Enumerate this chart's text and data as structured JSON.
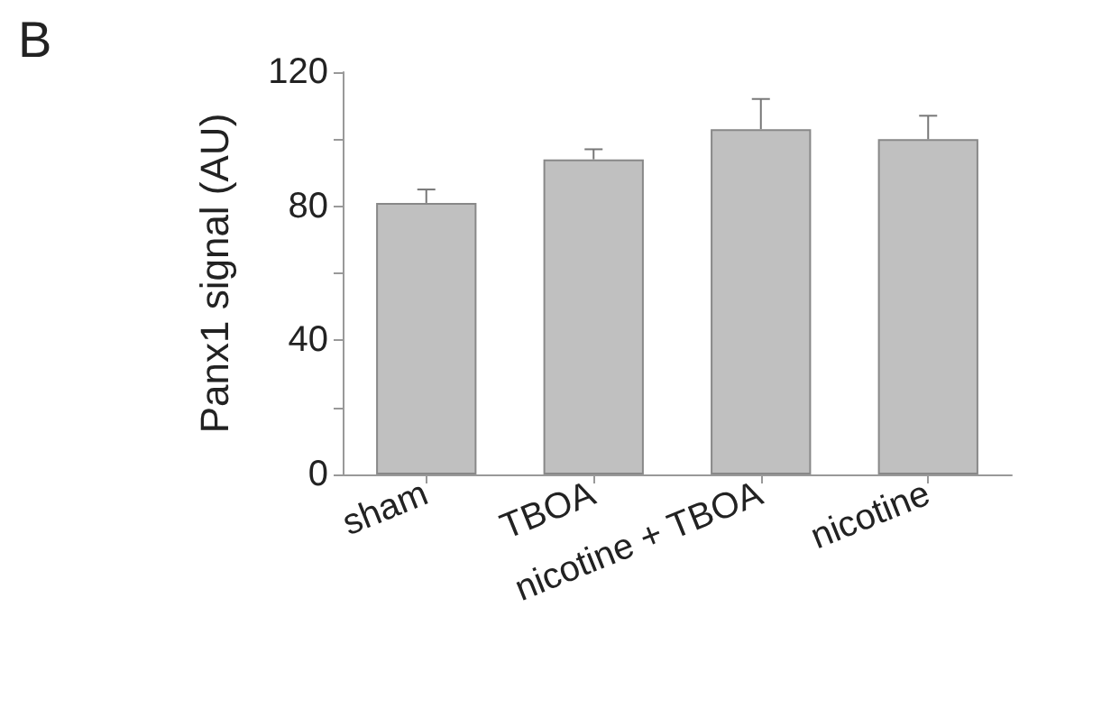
{
  "chart_data": {
    "type": "bar",
    "ylabel": "Panx1 signal (AU)",
    "annotations": [
      "B"
    ],
    "categories": [
      "sham",
      "TBOA",
      "nicotine + TBOA",
      "nicotine"
    ],
    "values": [
      81,
      94,
      103,
      100
    ],
    "errors": [
      4,
      3,
      9,
      7
    ],
    "color": "#c0c0c0",
    "ylim": [
      0,
      120
    ],
    "yticks": [
      0,
      {
        "value": 20,
        "label": null
      },
      40,
      {
        "value": 60,
        "label": null
      },
      80,
      {
        "value": 100,
        "label": null
      },
      120
    ],
    "grid": false
  }
}
